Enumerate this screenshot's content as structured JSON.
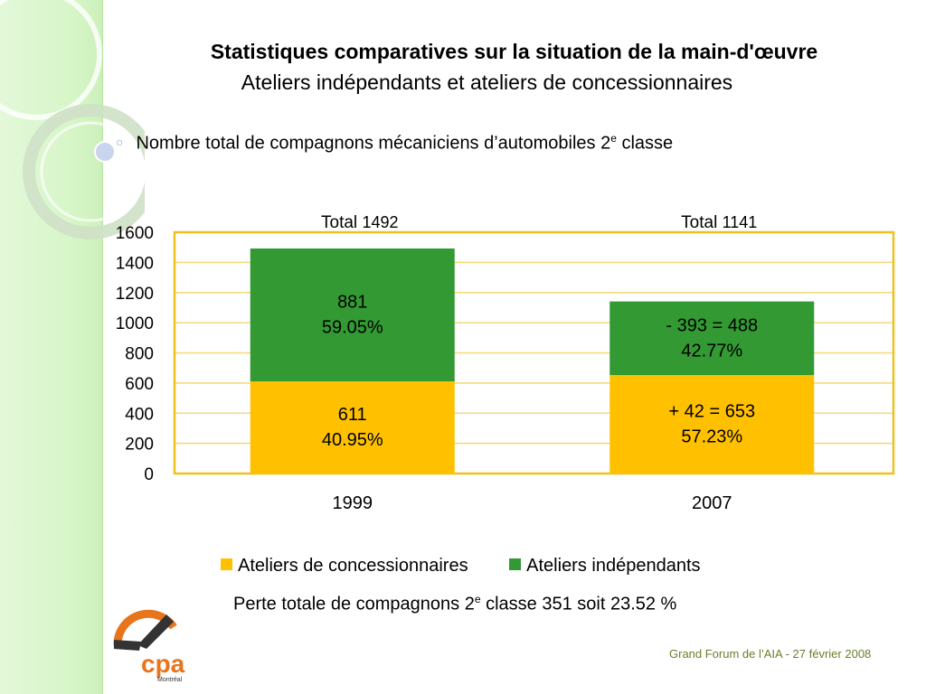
{
  "title": "Statistiques comparatives sur la situation de la main-d'œuvre",
  "subtitle": "Ateliers indépendants et ateliers de concessionnaires",
  "bullet": {
    "text": "Nombre total de compagnons mécaniciens d’automobiles 2",
    "sup": "e",
    "suffix": " classe"
  },
  "chart_data": {
    "type": "bar",
    "stacked": true,
    "categories": [
      "1999",
      "2007"
    ],
    "series": [
      {
        "name": "Ateliers de concessionnaires",
        "color": "#ffc000",
        "values": [
          611,
          653
        ]
      },
      {
        "name": "Ateliers indépendants",
        "color": "#339933",
        "values": [
          881,
          488
        ]
      }
    ],
    "segment_labels": [
      [
        "611\n40.95%",
        "881\n59.05%"
      ],
      [
        "+ 42 = 653\n57.23%",
        "- 393 = 488\n42.77%"
      ]
    ],
    "totals": [
      {
        "label": "Total",
        "value": "1492"
      },
      {
        "label": "Total",
        "value": "1141"
      }
    ],
    "yticks": [
      "0",
      "200",
      "400",
      "600",
      "800",
      "1000",
      "1200",
      "1400",
      "1600"
    ],
    "ylim": [
      0,
      1600
    ],
    "grid": true,
    "legend_position": "bottom",
    "plot_border_color": "#f0c020",
    "grid_color": "#f5d878"
  },
  "legend": [
    {
      "label": "Ateliers de concessionnaires",
      "color": "#ffc000"
    },
    {
      "label": "Ateliers indépendants",
      "color": "#339933"
    }
  ],
  "summary": {
    "prefix": "Perte totale de compagnons 2",
    "sup": "e",
    "suffix": " classe 351 soit 23.52 %"
  },
  "footer": "Grand Forum de l’AIA -  27 février 2008",
  "logo": {
    "text": "cpa",
    "subtext": "Montréal"
  }
}
